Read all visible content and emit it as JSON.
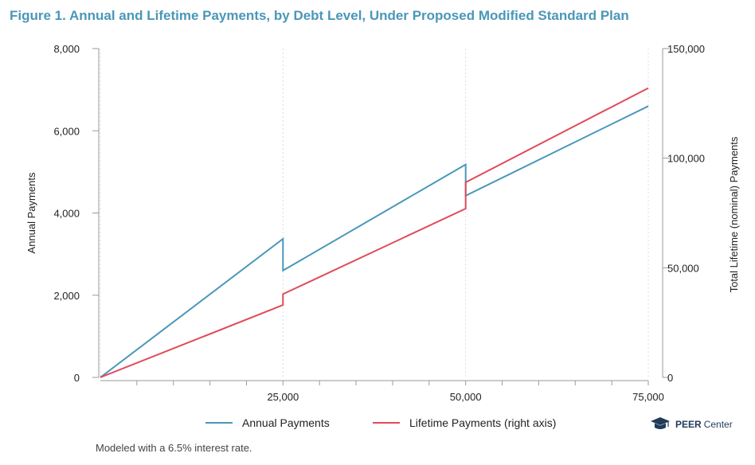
{
  "figure_title": "Figure 1. Annual and Lifetime Payments, by Debt Level, Under Proposed Modified Standard Plan",
  "footnote": "Modeled with a 6.5% interest rate.",
  "logo": {
    "bold_text": "PEER",
    "light_text": "Center"
  },
  "colors": {
    "title": "#4a97b8",
    "annual": "#4a97b8",
    "lifetime": "#e04b5a",
    "axis": "#999999",
    "grid": "#dddddd"
  },
  "legend": {
    "annual_label": "Annual Payments",
    "lifetime_label": "Lifetime Payments (right axis)"
  },
  "chart_data": {
    "type": "line",
    "title": "Figure 1. Annual and Lifetime Payments, by Debt Level, Under Proposed Modified Standard Plan",
    "xlabel": "",
    "ylabel": "Annual Payments",
    "y2label": "Total Lifetime (nominal) Payments",
    "xlim": [
      0,
      75000
    ],
    "ylim": [
      0,
      8000
    ],
    "y2lim": [
      0,
      150000
    ],
    "xticks": [
      25000,
      50000,
      75000
    ],
    "xtick_labels": [
      "25,000",
      "50,000",
      "75,000"
    ],
    "x_minor_ticks": [
      5000,
      10000,
      15000,
      20000,
      30000,
      35000,
      40000,
      45000,
      55000,
      60000,
      65000,
      70000
    ],
    "x_gridlines": [
      0,
      25000,
      50000,
      75000
    ],
    "yticks": [
      0,
      2000,
      4000,
      6000,
      8000
    ],
    "ytick_labels": [
      "0",
      "2,000",
      "4,000",
      "6,000",
      "8,000"
    ],
    "y2ticks": [
      0,
      50000,
      100000,
      150000
    ],
    "y2tick_labels": [
      "0",
      "50,000",
      "100,000",
      "150,000"
    ],
    "legend_position": "bottom",
    "series": [
      {
        "name": "Annual Payments",
        "axis": "left",
        "points": [
          [
            0,
            0
          ],
          [
            25000,
            3370
          ],
          [
            25000,
            2600
          ],
          [
            50000,
            5180
          ],
          [
            50000,
            4420
          ],
          [
            75000,
            6600
          ]
        ]
      },
      {
        "name": "Lifetime Payments (right axis)",
        "axis": "right",
        "points": [
          [
            0,
            0
          ],
          [
            25000,
            33000
          ],
          [
            25000,
            38000
          ],
          [
            50000,
            77000
          ],
          [
            50000,
            89000
          ],
          [
            75000,
            132000
          ]
        ]
      }
    ]
  }
}
